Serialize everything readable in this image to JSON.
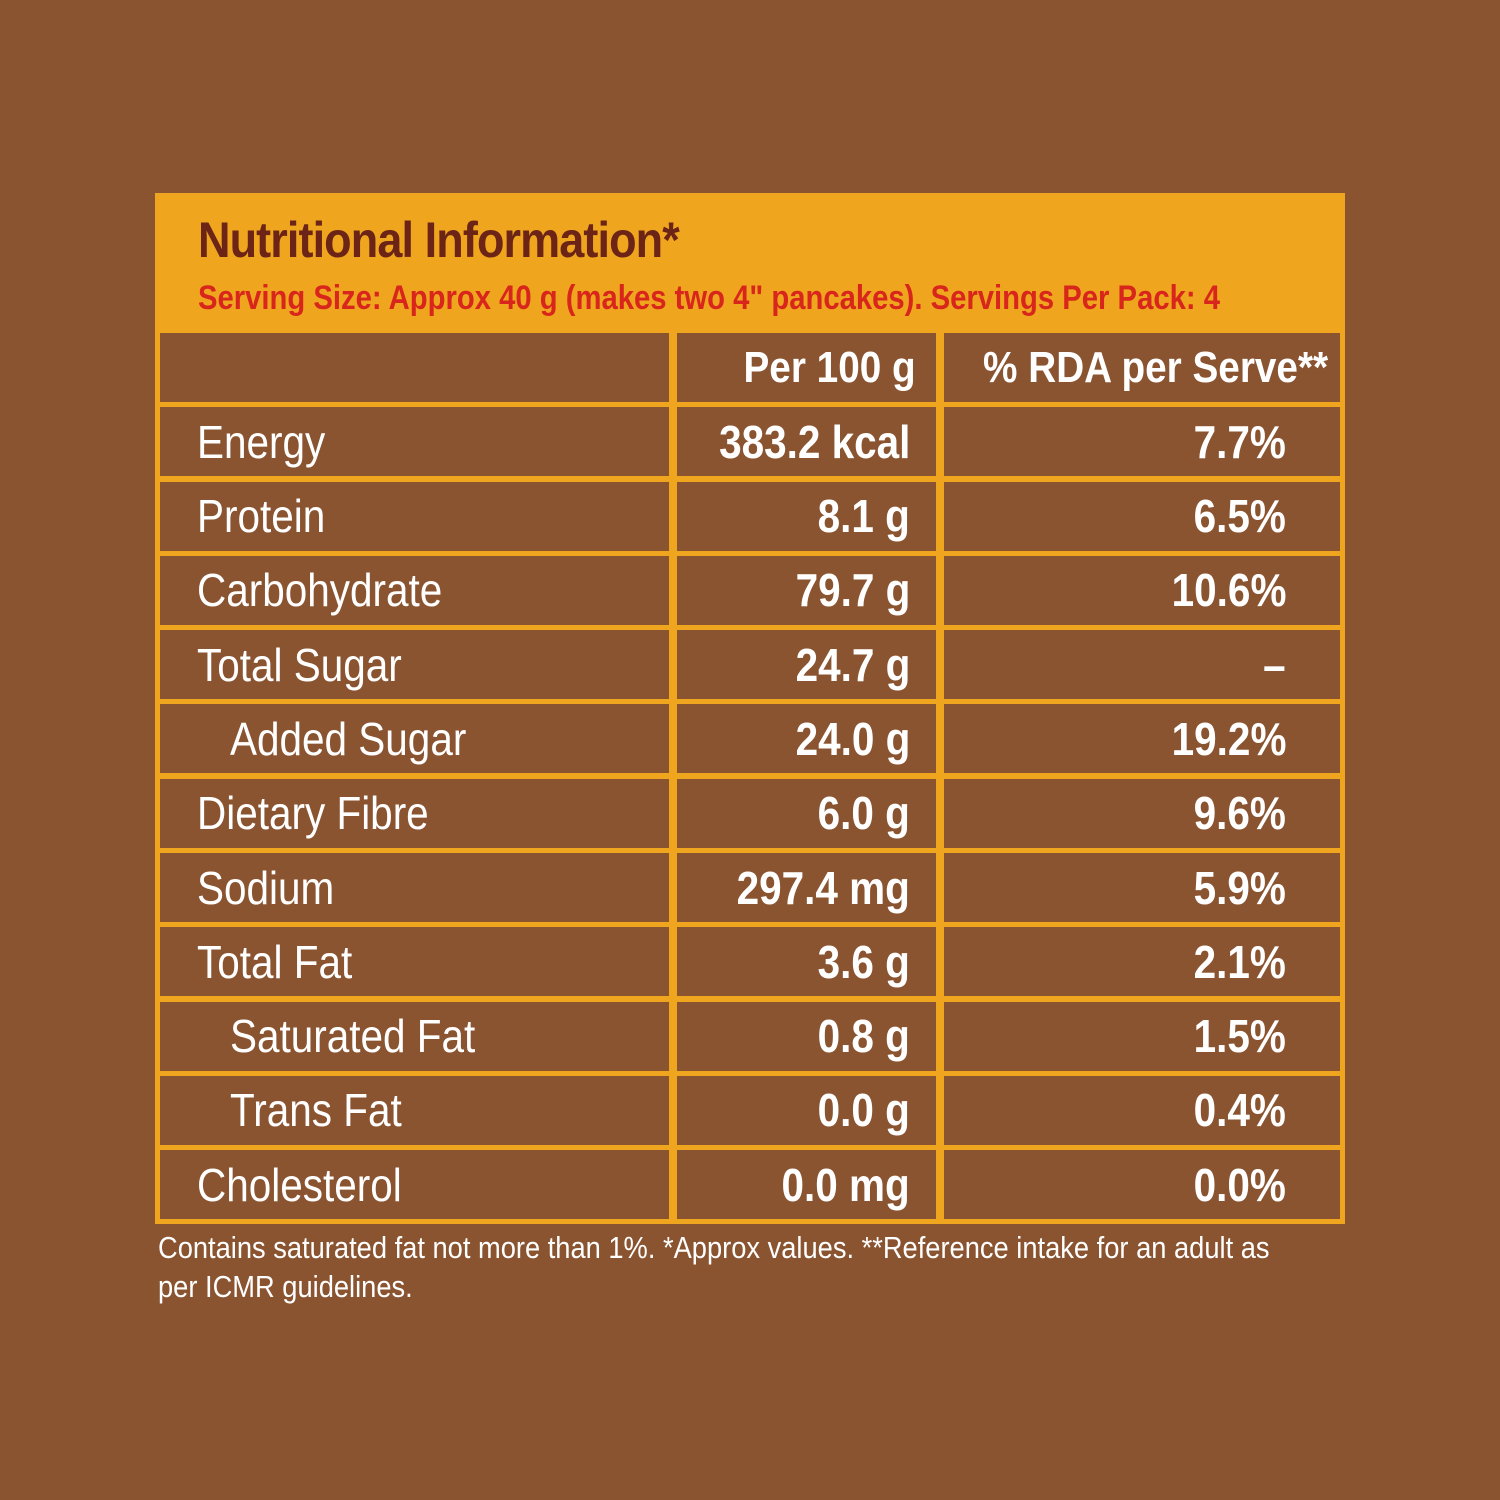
{
  "panel": {
    "title": "Nutritional Information*",
    "serving": "Serving Size: Approx 40 g (makes two 4\" pancakes). Servings Per Pack: 4"
  },
  "table": {
    "headers": [
      "",
      "Per 100 g",
      "% RDA per Serve**"
    ],
    "rows": [
      {
        "name": "Energy",
        "per100": "383.2 kcal",
        "rda": "7.7%"
      },
      {
        "name": "Protein",
        "per100": "8.1 g",
        "rda": "6.5%"
      },
      {
        "name": "Carbohydrate",
        "per100": "79.7 g",
        "rda": "10.6%"
      },
      {
        "name": "Total Sugar",
        "per100": "24.7 g",
        "rda": "–"
      },
      {
        "name": "Added Sugar",
        "per100": "24.0 g",
        "rda": "19.2%"
      },
      {
        "name": "Dietary Fibre",
        "per100": "6.0 g",
        "rda": "9.6%"
      },
      {
        "name": "Sodium",
        "per100": "297.4 mg",
        "rda": "5.9%"
      },
      {
        "name": "Total Fat",
        "per100": "3.6 g",
        "rda": "2.1%"
      },
      {
        "name": "Saturated Fat",
        "per100": "0.8 g",
        "rda": "1.5%"
      },
      {
        "name": "Trans Fat",
        "per100": "0.0 g",
        "rda": "0.4%"
      },
      {
        "name": "Cholesterol",
        "per100": "0.0 mg",
        "rda": "0.0%"
      }
    ]
  },
  "footnote": "Contains saturated fat not more than 1%. *Approx values. **Reference intake for an adult as per ICMR guidelines.",
  "colors": {
    "background": "#8B5431",
    "panel": "#EFA61E",
    "title": "#6B2415",
    "serving": "#D9261C",
    "text": "#FFFFFF"
  }
}
